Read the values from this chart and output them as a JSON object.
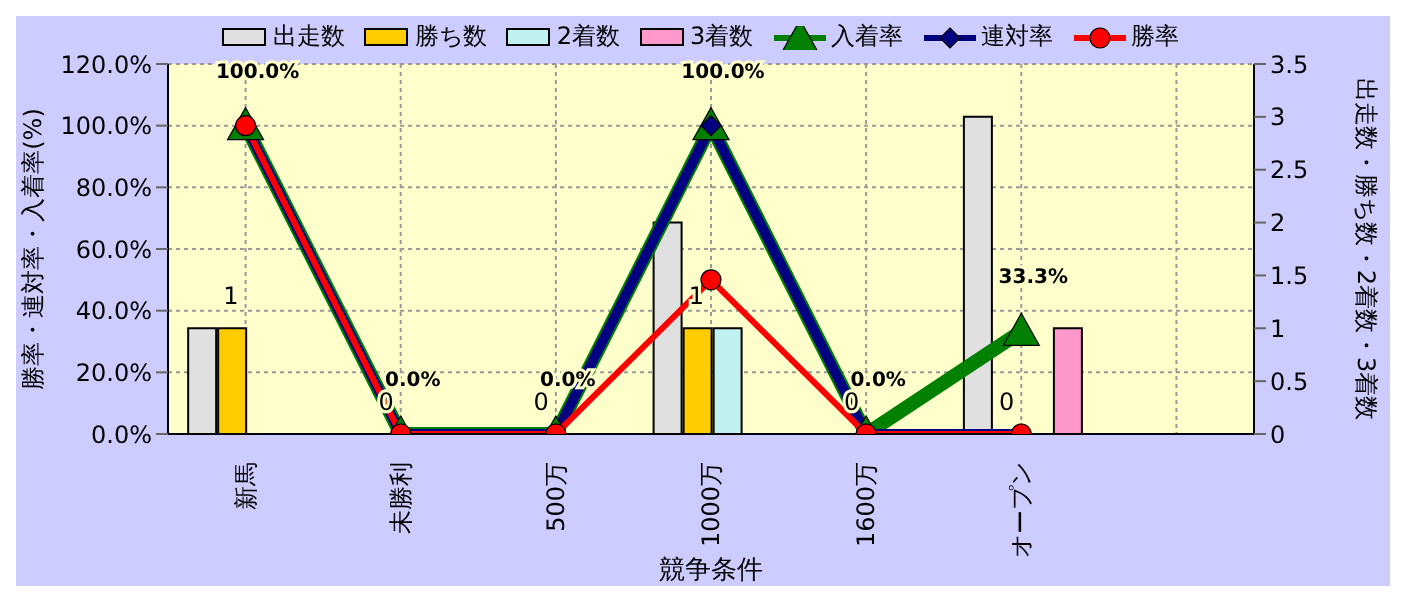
{
  "chart_data": {
    "type": "bar",
    "xlabel": "競争条件",
    "ylabel": "勝率・連対率・入着率(%)",
    "y2label": "出走数・勝ち数・2着数・3着数",
    "categories": [
      "新馬",
      "未勝利",
      "500万",
      "1000万",
      "1600万",
      "オープン",
      null
    ],
    "series": [
      {
        "name": "出走数",
        "axis": "y2",
        "color": "#e0e0e0",
        "values": [
          1,
          0,
          0,
          2,
          0,
          3,
          null
        ]
      },
      {
        "name": "勝ち数",
        "axis": "y2",
        "color": "#ffcc00",
        "values": [
          1,
          0,
          0,
          1,
          0,
          0,
          null
        ],
        "value_labels": [
          "1",
          "0",
          "0",
          "1",
          "0",
          "0",
          null
        ]
      },
      {
        "name": "2着数",
        "axis": "y2",
        "color": "#c0f0f0",
        "values": [
          0,
          0,
          0,
          1,
          0,
          0,
          null
        ]
      },
      {
        "name": "3着数",
        "axis": "y2",
        "color": "#ff99cc",
        "values": [
          0,
          0,
          0,
          0,
          0,
          1,
          null
        ]
      },
      {
        "name": "入着率",
        "type": "line",
        "axis": "y",
        "color": "#008000",
        "marker": "triangle",
        "values": [
          100,
          0,
          0,
          100,
          0,
          33.3,
          null
        ],
        "value_labels": [
          "100.0%",
          "0.0%",
          "0.0%",
          "100.0%",
          "0.0%",
          "33.3%",
          null
        ]
      },
      {
        "name": "連対率",
        "type": "line",
        "axis": "y",
        "color": "#000080",
        "marker": "diamond",
        "values": [
          100,
          0,
          0,
          100,
          0,
          0,
          null
        ]
      },
      {
        "name": "勝率",
        "type": "line",
        "axis": "y",
        "color": "#ff0000",
        "marker": "circle",
        "values": [
          100,
          0,
          0,
          50,
          0,
          0,
          null
        ]
      }
    ],
    "ylim": [
      0,
      120
    ],
    "yticks": [
      {
        "value": 0,
        "label": "0.0%"
      },
      {
        "value": 20,
        "label": "20.0%"
      },
      {
        "value": 40,
        "label": "40.0%"
      },
      {
        "value": 60,
        "label": "60.0%"
      },
      {
        "value": 80,
        "label": "80.0%"
      },
      {
        "value": 100,
        "label": "100.0%"
      },
      {
        "value": 120,
        "label": "120.0%"
      }
    ],
    "y2lim": [
      0,
      3.5
    ],
    "y2ticks": [
      0,
      0.5,
      1,
      1.5,
      2,
      2.5,
      3,
      3.5
    ],
    "grid": true,
    "legend": "top"
  }
}
